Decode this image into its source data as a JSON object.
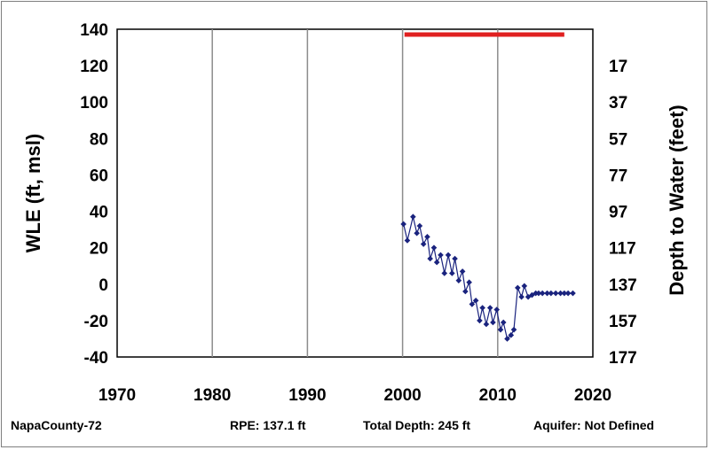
{
  "chart_data": {
    "type": "line",
    "title": "",
    "ylabel": "WLE (ft, msl)",
    "y2label": "Depth to Water (feet)",
    "xlabel": "",
    "xlim": [
      1970,
      2020
    ],
    "ylim": [
      -40,
      140
    ],
    "x_ticks": [
      1970,
      1980,
      1990,
      2000,
      2010,
      2020
    ],
    "y_ticks": [
      -40,
      -20,
      0,
      20,
      40,
      60,
      80,
      100,
      120,
      140
    ],
    "y2_ticks": [
      17,
      37,
      57,
      77,
      97,
      117,
      137,
      157,
      177
    ],
    "y2_tick_wle": [
      120,
      100,
      80,
      60,
      40,
      20,
      0,
      -20,
      -40
    ],
    "grid": true,
    "series": [
      {
        "color": "#1a237e",
        "marker": "diamond",
        "x": [
          2000.1,
          2000.5,
          2001.1,
          2001.5,
          2001.8,
          2002.2,
          2002.6,
          2002.9,
          2003.3,
          2003.6,
          2004.0,
          2004.4,
          2004.8,
          2005.2,
          2005.5,
          2005.9,
          2006.3,
          2006.6,
          2007.0,
          2007.3,
          2007.7,
          2008.1,
          2008.4,
          2008.8,
          2009.2,
          2009.5,
          2009.9,
          2010.3,
          2010.6,
          2011.0,
          2011.4,
          2011.7,
          2012.1,
          2012.5,
          2012.8,
          2013.2,
          2013.6,
          2014.0,
          2014.3,
          2014.7,
          2015.2,
          2015.6,
          2016.1,
          2016.6,
          2017.0,
          2017.4,
          2017.9
        ],
        "y": [
          33,
          24,
          37,
          28,
          32,
          22,
          26,
          14,
          20,
          12,
          16,
          6,
          16,
          6,
          14,
          2,
          7,
          -4,
          1,
          -11,
          -9,
          -20,
          -13,
          -22,
          -13,
          -21,
          -14,
          -25,
          -21,
          -30,
          -28,
          -25,
          -2,
          -7,
          -1,
          -7,
          -6,
          -5,
          -5,
          -5,
          -5,
          -5,
          -5,
          -5,
          -5,
          -5,
          -5
        ]
      }
    ],
    "reference_line": {
      "color": "#e02020",
      "y": 137.1,
      "x": [
        2000.2,
        2017.0
      ]
    }
  },
  "footer": {
    "well": "NapaCounty-72",
    "rpe": "RPE: 137.1 ft",
    "depth": "Total Depth: 245 ft",
    "aquifer": "Aquifer: Not Defined"
  }
}
